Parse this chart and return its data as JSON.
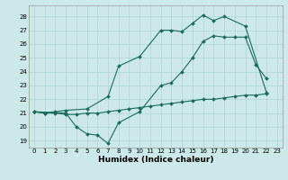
{
  "title": "",
  "xlabel": "Humidex (Indice chaleur)",
  "ylabel": "",
  "bg_color": "#cce8e8",
  "line_color": "#1a6b5a",
  "xlim": [
    -0.5,
    23.5
  ],
  "ylim": [
    18.5,
    28.8
  ],
  "xticks": [
    0,
    1,
    2,
    3,
    4,
    5,
    6,
    7,
    8,
    9,
    10,
    11,
    12,
    13,
    14,
    15,
    16,
    17,
    18,
    19,
    20,
    21,
    22,
    23
  ],
  "yticks": [
    19,
    20,
    21,
    22,
    23,
    24,
    25,
    26,
    27,
    28
  ],
  "line1_x": [
    0,
    1,
    2,
    3,
    5,
    7,
    8,
    10,
    12,
    13,
    14,
    15,
    16,
    17,
    18,
    20,
    22
  ],
  "line1_y": [
    21.1,
    21.0,
    21.1,
    21.2,
    21.3,
    22.2,
    24.4,
    25.1,
    27.0,
    27.0,
    26.9,
    27.5,
    28.1,
    27.7,
    28.0,
    27.3,
    22.5
  ],
  "line2_x": [
    0,
    3,
    4,
    5,
    6,
    7,
    8,
    10,
    12,
    13,
    14,
    15,
    16,
    17,
    18,
    19,
    20,
    21,
    22
  ],
  "line2_y": [
    21.1,
    21.0,
    20.0,
    19.5,
    19.4,
    18.8,
    20.3,
    21.1,
    23.0,
    23.2,
    24.0,
    25.0,
    26.2,
    26.6,
    26.5,
    26.5,
    26.5,
    24.5,
    23.5
  ],
  "line3_x": [
    0,
    1,
    2,
    3,
    4,
    5,
    6,
    7,
    8,
    9,
    10,
    11,
    12,
    13,
    14,
    15,
    16,
    17,
    18,
    19,
    20,
    21,
    22
  ],
  "line3_y": [
    21.1,
    21.0,
    21.0,
    20.9,
    20.9,
    21.0,
    21.0,
    21.1,
    21.2,
    21.3,
    21.4,
    21.5,
    21.6,
    21.7,
    21.8,
    21.9,
    22.0,
    22.0,
    22.1,
    22.2,
    22.3,
    22.3,
    22.4
  ],
  "grid_color": "#afd4d4",
  "marker": "D",
  "markersize": 2,
  "linewidth": 0.8,
  "xlabel_fontsize": 6.5,
  "tick_fontsize": 5.0
}
